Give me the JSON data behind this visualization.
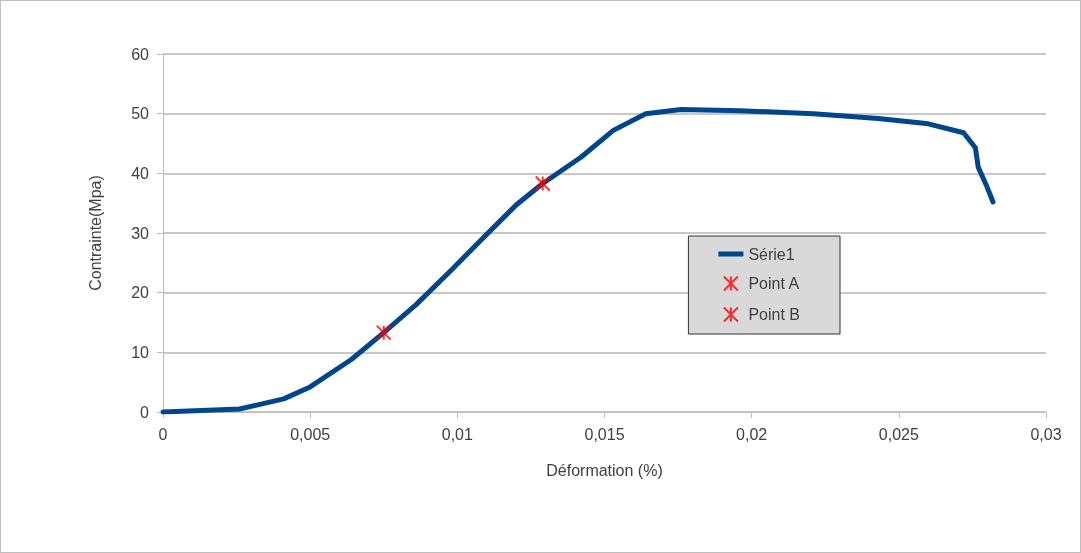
{
  "chart_data": {
    "type": "line",
    "xlabel": "Déformation (%)",
    "ylabel": "Contrainte(Mpa)",
    "xlim": [
      0,
      0.03
    ],
    "xticks": [
      0,
      {
        "value": 0.005,
        "label": "0,005"
      },
      {
        "value": 0.01,
        "label": "0,01"
      },
      {
        "value": 0.015,
        "label": "0,015"
      },
      {
        "value": 0.02,
        "label": "0,02"
      },
      {
        "value": 0.025,
        "label": "0,025"
      },
      {
        "value": 0.03,
        "label": "0,03"
      }
    ],
    "ylim": [
      0,
      60
    ],
    "yticks": [
      0,
      10,
      20,
      30,
      40,
      50,
      60
    ],
    "grid": "y",
    "legend": "center",
    "series": [
      {
        "name": "Série1",
        "color": "#00468c",
        "marker": "none",
        "line_style": "solid",
        "x": [
          0,
          0.0026,
          0.0041,
          0.005,
          0.0064,
          0.0075,
          0.0086,
          0.0098,
          0.0109,
          0.012,
          0.0129,
          0.0142,
          0.0153,
          0.0164,
          0.0176,
          0.0196,
          0.0221,
          0.0243,
          0.026,
          0.0272,
          0.0276,
          0.0277,
          0.028,
          0.0282
        ],
        "values": [
          0,
          0.5,
          2.2,
          4.2,
          8.8,
          13.3,
          18,
          23.8,
          29.3,
          34.7,
          38.3,
          42.7,
          47.2,
          50,
          50.7,
          50.5,
          50,
          49.2,
          48.3,
          46.8,
          44.3,
          41,
          37.7,
          35.2
        ]
      },
      {
        "name": "Point A",
        "type": "scatter",
        "color": "#ff0000",
        "marker": "cross",
        "x": [
          0.0075
        ],
        "values": [
          13.3
        ]
      },
      {
        "name": "Point B",
        "type": "scatter",
        "color": "#ff0000",
        "marker": "cross",
        "x": [
          0.0129
        ],
        "values": [
          38.3
        ]
      }
    ]
  }
}
